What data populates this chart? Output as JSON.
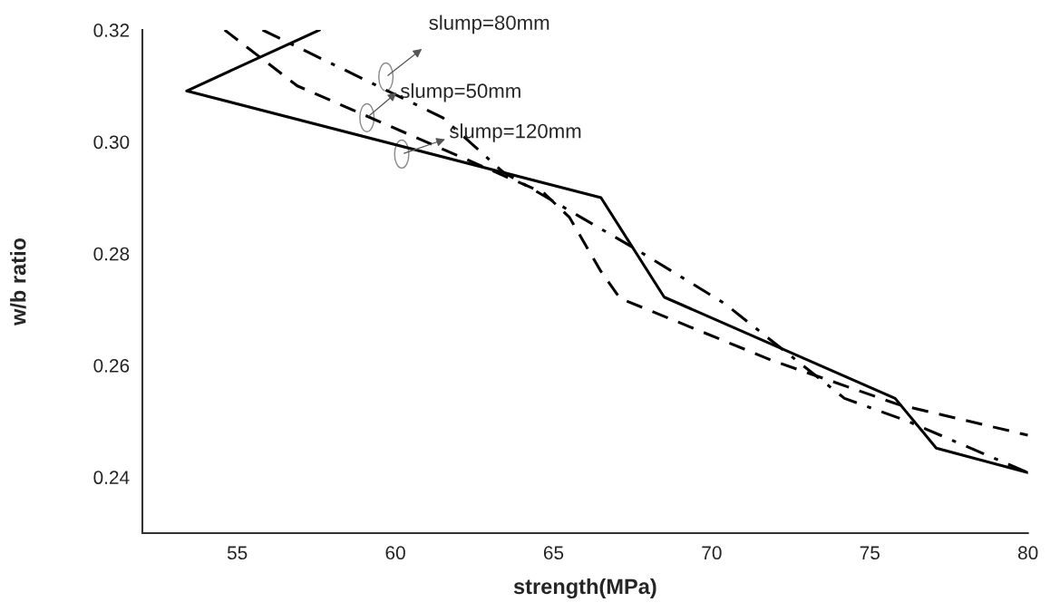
{
  "chart_data": {
    "type": "line",
    "xlabel": "strength(MPa)",
    "ylabel": "w/b ratio",
    "xlim": [
      52,
      80
    ],
    "ylim": [
      0.23,
      0.32
    ],
    "xticks": [
      55,
      60,
      65,
      70,
      75,
      80
    ],
    "yticks": [
      0.24,
      0.26,
      0.28,
      {
        "value": 0.3,
        "label": "0.30"
      },
      0.32
    ],
    "grid": false,
    "marker": "none",
    "series": [
      {
        "color": "#000000",
        "line_style": "dashdot",
        "x": [
          55.8,
          61.5,
          63.4,
          67.6,
          70.4,
          74.2,
          76.2,
          80
        ],
        "values": [
          0.32,
          0.3043,
          0.2946,
          0.2808,
          0.2711,
          0.2541,
          0.25,
          0.2408
        ]
      },
      {
        "color": "#000000",
        "line_style": "dashed",
        "x": [
          54.6,
          56.9,
          64.7,
          65.5,
          66.5,
          67.1,
          71.9,
          75.9,
          80
        ],
        "values": [
          0.32,
          0.31,
          0.2908,
          0.2865,
          0.2768,
          0.272,
          0.2609,
          0.253,
          0.2475
        ]
      },
      {
        "color": "#000000",
        "line_style": "solid",
        "x": [
          57.6,
          53.4,
          66.5,
          68.5,
          75.8,
          77.1,
          80
        ],
        "values": [
          0.32,
          0.3091,
          0.29,
          0.2722,
          0.2541,
          0.2452,
          0.2408
        ]
      }
    ],
    "annotations": [
      {
        "text": "slump=80mm",
        "x": 59.7,
        "y": 0.3116
      },
      {
        "text": "slump=50mm",
        "x": 59.1,
        "y": 0.3043
      },
      {
        "text": "slump=120mm",
        "x": 60.2,
        "y": 0.2978
      }
    ]
  }
}
